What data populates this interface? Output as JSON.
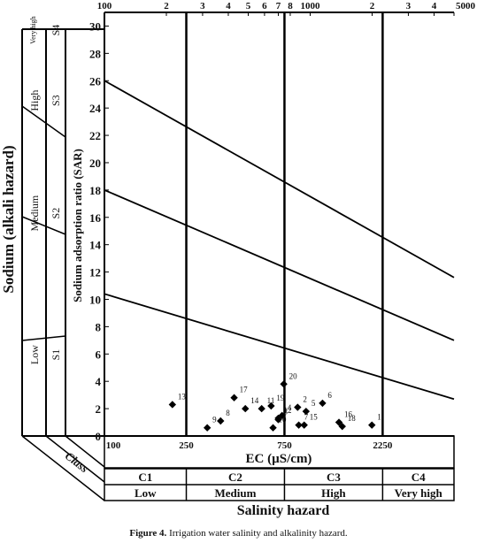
{
  "caption": {
    "label": "Figure 4.",
    "text": "Irrigation water salinity and alkalinity hazard."
  },
  "chart_data": {
    "type": "scatter",
    "title": "",
    "xlabel": "EC (µS/cm)",
    "ylabel": "Sodium adsorption ratio (SAR)",
    "left_axis_label": "Sodium (alkali hazard)",
    "bottom_title": "Salinity hazard",
    "x_scale": "log",
    "xlim": [
      100,
      5000
    ],
    "ylim": [
      0,
      31
    ],
    "top_ticks": [
      {
        "value": 100,
        "label": "100"
      },
      {
        "value": 200,
        "label": "2"
      },
      {
        "value": 300,
        "label": "3"
      },
      {
        "value": 400,
        "label": "4"
      },
      {
        "value": 500,
        "label": "5"
      },
      {
        "value": 600,
        "label": "6"
      },
      {
        "value": 700,
        "label": "7"
      },
      {
        "value": 800,
        "label": "8"
      },
      {
        "value": 1000,
        "label": "1000"
      },
      {
        "value": 2000,
        "label": "2"
      },
      {
        "value": 3000,
        "label": "3"
      },
      {
        "value": 4000,
        "label": "4"
      },
      {
        "value": 5000,
        "label": "5000"
      }
    ],
    "bottom_ticks": [
      {
        "value": 100,
        "label": "100"
      },
      {
        "value": 250,
        "label": "250"
      },
      {
        "value": 750,
        "label": "750"
      },
      {
        "value": 2250,
        "label": "2250"
      }
    ],
    "y_ticks": [
      0,
      2,
      4,
      6,
      8,
      10,
      12,
      14,
      16,
      18,
      20,
      22,
      24,
      26,
      28,
      30
    ],
    "class_boundaries_ec": [
      250,
      750,
      2250
    ],
    "class_label": "Class",
    "salinity_classes": [
      {
        "code": "C1",
        "name": "Low"
      },
      {
        "code": "C2",
        "name": "Medium"
      },
      {
        "code": "C3",
        "name": "High"
      },
      {
        "code": "C4",
        "name": "Very high"
      }
    ],
    "sodium_classes": [
      {
        "code": "S1",
        "name": "Low",
        "y_range": [
          0,
          11.9
        ]
      },
      {
        "code": "S2",
        "name": "Medium",
        "y_range": [
          11.9,
          20.7
        ]
      },
      {
        "code": "S3",
        "name": "High",
        "y_range": [
          20.7,
          28.4
        ]
      },
      {
        "code": "S4",
        "name": "Very high",
        "y_range": [
          28.4,
          31
        ]
      }
    ],
    "hazard_lines": [
      {
        "from": [
          100,
          10.4
        ],
        "to": [
          5000,
          2.7
        ]
      },
      {
        "from": [
          100,
          18.0
        ],
        "to": [
          5000,
          7.0
        ]
      },
      {
        "from": [
          100,
          26.0
        ],
        "to": [
          5000,
          11.6
        ]
      }
    ],
    "points": [
      {
        "id": "1",
        "x": 1995,
        "y": 0.8
      },
      {
        "id": "2",
        "x": 869,
        "y": 2.1
      },
      {
        "id": "3",
        "x": 700,
        "y": 1.2
      },
      {
        "id": "4",
        "x": 730,
        "y": 1.5
      },
      {
        "id": "5",
        "x": 955,
        "y": 1.8
      },
      {
        "id": "6",
        "x": 1148,
        "y": 2.4
      },
      {
        "id": "7",
        "x": 880,
        "y": 0.8
      },
      {
        "id": "8",
        "x": 367,
        "y": 1.1
      },
      {
        "id": "9",
        "x": 316,
        "y": 0.6
      },
      {
        "id": "10",
        "x": 660,
        "y": 0.6
      },
      {
        "id": "11",
        "x": 581,
        "y": 2.0
      },
      {
        "id": "12",
        "x": 700,
        "y": 1.3
      },
      {
        "id": "13",
        "x": 214,
        "y": 2.3
      },
      {
        "id": "14",
        "x": 484,
        "y": 2.0
      },
      {
        "id": "15",
        "x": 935,
        "y": 0.8
      },
      {
        "id": "16",
        "x": 1380,
        "y": 1.0
      },
      {
        "id": "17",
        "x": 427,
        "y": 2.8
      },
      {
        "id": "18",
        "x": 1432,
        "y": 0.7
      },
      {
        "id": "19",
        "x": 646,
        "y": 2.2
      },
      {
        "id": "20",
        "x": 744,
        "y": 3.8
      }
    ]
  }
}
